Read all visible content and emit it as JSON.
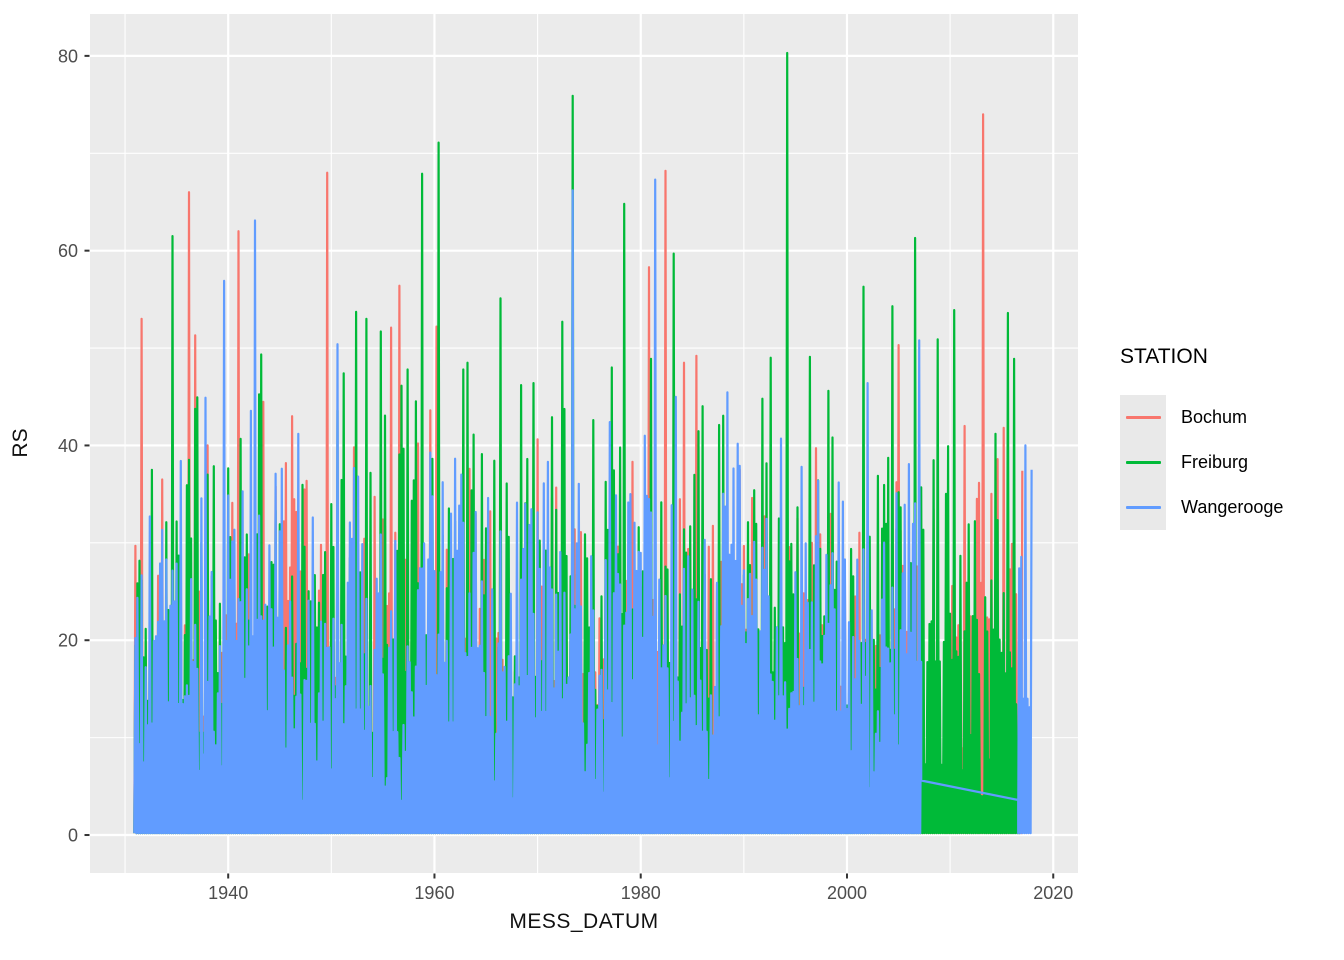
{
  "figure": {
    "kind": "ggplot-time-series",
    "background": "#FFFFFF"
  },
  "colors": {
    "panel_bg": "#EBEBEB",
    "grid": "#FFFFFF",
    "tick_text": "#4D4D4D",
    "axis_tick": "#333333",
    "legend_key_bg": "#E9E9E9",
    "title_text": "#111111"
  },
  "legend": {
    "title": "STATION",
    "entries": [
      {
        "label": "Bochum",
        "color": "#F8766D"
      },
      {
        "label": "Freiburg",
        "color": "#00BA38"
      },
      {
        "label": "Wangerooge",
        "color": "#619CFF"
      }
    ]
  },
  "chart_data": {
    "type": "line",
    "title": "",
    "xlabel": "MESS_DATUM",
    "ylabel": "RS",
    "legend_position": "right",
    "grid": "on",
    "xlim": [
      1926.6,
      2022.4
    ],
    "ylim": [
      -3.9,
      84.3
    ],
    "x_ticks": [
      1940,
      1960,
      1980,
      2000,
      2020
    ],
    "x_tick_labels": [
      "1940",
      "1960",
      "1980",
      "2000",
      "2020"
    ],
    "x_minor_ticks": [
      1930,
      1950,
      1970,
      1990,
      2010
    ],
    "y_ticks": [
      0,
      20,
      40,
      60,
      80
    ],
    "y_tick_labels": [
      "0",
      "20",
      "40",
      "60",
      "80"
    ],
    "y_minor_ticks": [
      10,
      30,
      50,
      70
    ],
    "series": [
      {
        "name": "Bochum",
        "color": "#F8766D",
        "coverage": [
          1930.9,
          2017.0
        ],
        "typical_band": [
          0,
          40
        ],
        "render_profile": {
          "seed": 42,
          "step_years": 0.1,
          "base_low": 0.2,
          "top_mean": 19,
          "top_sd": 8.5,
          "top_min": 3,
          "top_max": 43,
          "wave_amp": 4.5,
          "wave_period": 8.3,
          "spike_prob": 0.012,
          "spike_extra": 10
        },
        "notable_peaks": [
          [
            1931.6,
            53.0
          ],
          [
            1933.5,
            36.5
          ],
          [
            1936.2,
            66.0
          ],
          [
            1936.7,
            51.3
          ],
          [
            1938.0,
            40.0
          ],
          [
            1941.0,
            62.0
          ],
          [
            1944.6,
            35.8
          ],
          [
            1949.6,
            68.0
          ],
          [
            1952.1,
            39.8
          ],
          [
            1956.6,
            56.4
          ],
          [
            1958.3,
            40.2
          ],
          [
            1960.2,
            52.2
          ],
          [
            1964.0,
            33.0
          ],
          [
            1980.8,
            58.3
          ],
          [
            1982.4,
            68.2
          ],
          [
            1984.2,
            48.5
          ],
          [
            1985.3,
            49.2
          ],
          [
            1990.8,
            34.6
          ],
          [
            1992.5,
            33.0
          ],
          [
            2008.4,
            33.4
          ],
          [
            2011.3,
            42.0
          ],
          [
            2013.2,
            74.0
          ],
          [
            2014.6,
            38.6
          ],
          [
            2015.1,
            41.8
          ],
          [
            2016.9,
            37.4
          ]
        ]
      },
      {
        "name": "Freiburg",
        "color": "#00BA38",
        "coverage": [
          1930.9,
          2016.8
        ],
        "typical_band": [
          0,
          48
        ],
        "render_profile": {
          "seed": 7,
          "step_years": 0.1,
          "base_low": 0.2,
          "top_mean": 24,
          "top_sd": 10,
          "top_min": 4,
          "top_max": 48,
          "wave_amp": 5,
          "wave_period": 6.7,
          "spike_prob": 0.012,
          "spike_extra": 8
        },
        "notable_peaks": [
          [
            1934.6,
            61.5
          ],
          [
            1937.4,
            30.0
          ],
          [
            1950.6,
            43.6
          ],
          [
            1953.3,
            53.0
          ],
          [
            1954.8,
            51.7
          ],
          [
            1957.4,
            47.8
          ],
          [
            1958.7,
            67.9
          ],
          [
            1960.4,
            71.1
          ],
          [
            1963.2,
            48.5
          ],
          [
            1966.3,
            55.1
          ],
          [
            1968.4,
            46.2
          ],
          [
            1969.6,
            46.4
          ],
          [
            1971.3,
            42.9
          ],
          [
            1973.3,
            75.9
          ],
          [
            1975.4,
            42.6
          ],
          [
            1978.4,
            64.8
          ],
          [
            1981.0,
            48.9
          ],
          [
            1983.2,
            59.7
          ],
          [
            1987.5,
            42.1
          ],
          [
            1991.7,
            44.8
          ],
          [
            1994.2,
            80.3
          ],
          [
            1996.3,
            49.1
          ],
          [
            1998.1,
            45.6
          ],
          [
            2001.5,
            56.3
          ],
          [
            2004.3,
            54.3
          ],
          [
            2006.5,
            61.3
          ],
          [
            2008.7,
            50.9
          ],
          [
            2010.4,
            53.9
          ],
          [
            2015.6,
            53.6
          ],
          [
            2016.2,
            48.9
          ]
        ]
      },
      {
        "name": "Wangerooge",
        "color": "#619CFF",
        "coverage": [
          1930.9,
          2017.9
        ],
        "typical_band": [
          0,
          41
        ],
        "segments": [
          [
            1930.9,
            2007.2
          ],
          [
            2016.6,
            2017.9
          ]
        ],
        "gap_line": [
          [
            2007.2,
            5.6
          ],
          [
            2016.6,
            3.6
          ]
        ],
        "render_profile": {
          "seed": 101,
          "step_years": 0.1,
          "base_low": 0.2,
          "top_mean": 22,
          "top_sd": 8,
          "top_min": 3.5,
          "top_max": 41,
          "wave_amp": 4,
          "wave_period": 9.2,
          "spike_prob": 0.01,
          "spike_extra": 9,
          "segment_overrides": [
            null,
            {
              "top_mean": 27,
              "top_sd": 7,
              "top_max": 38
            }
          ]
        },
        "notable_peaks": [
          [
            1932.3,
            32.7
          ],
          [
            1935.4,
            38.4
          ],
          [
            1937.8,
            44.9
          ],
          [
            1939.5,
            56.9
          ],
          [
            1942.6,
            63.1
          ],
          [
            1946.8,
            41.2
          ],
          [
            1948.1,
            32.6
          ],
          [
            1950.6,
            50.4
          ],
          [
            1952.6,
            36.8
          ],
          [
            1956.1,
            30.2
          ],
          [
            1961.6,
            33.0
          ],
          [
            1965.2,
            34.6
          ],
          [
            1970.6,
            36.1
          ],
          [
            1973.3,
            66.2
          ],
          [
            1977.0,
            42.4
          ],
          [
            1981.3,
            67.3
          ],
          [
            1983.4,
            45.0
          ],
          [
            1986.1,
            30.3
          ],
          [
            1993.5,
            40.7
          ],
          [
            1995.6,
            37.8
          ],
          [
            1999.1,
            36.2
          ],
          [
            2001.9,
            46.4
          ],
          [
            2004.8,
            35.1
          ],
          [
            2006.9,
            50.8
          ],
          [
            2017.3,
            40.0
          ],
          [
            2017.8,
            37.5
          ]
        ]
      }
    ]
  }
}
